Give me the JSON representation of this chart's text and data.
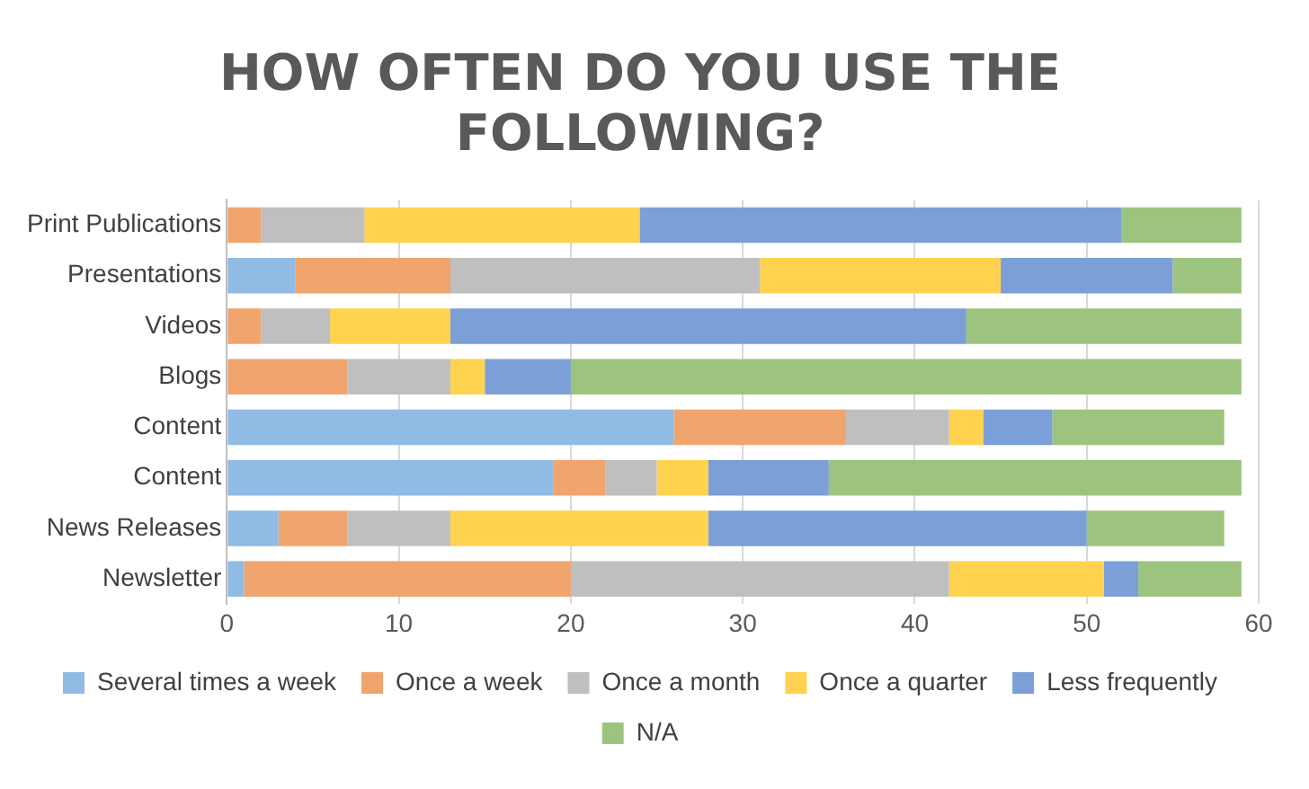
{
  "chart_data": {
    "type": "bar",
    "title": "HOW OFTEN DO YOU USE THE FOLLOWING?",
    "orientation": "horizontal",
    "stacked": true,
    "categories": [
      "Print Publications",
      "Presentations",
      "Videos",
      "Blogs",
      "Content",
      "Content",
      "News Releases",
      "Newsletter"
    ],
    "series": [
      {
        "name": "Several times a week",
        "color": "#8fbbe4",
        "values": [
          0,
          4,
          0,
          0,
          26,
          19,
          3,
          1
        ]
      },
      {
        "name": "Once a week",
        "color": "#f0a46e",
        "values": [
          2,
          9,
          2,
          7,
          10,
          3,
          4,
          19
        ]
      },
      {
        "name": "Once a month",
        "color": "#bfbfbf",
        "values": [
          6,
          18,
          4,
          6,
          6,
          3,
          6,
          22
        ]
      },
      {
        "name": "Once a quarter",
        "color": "#ffd24f",
        "values": [
          16,
          14,
          7,
          2,
          2,
          3,
          15,
          9
        ]
      },
      {
        "name": "Less frequently",
        "color": "#7b9fd6",
        "values": [
          28,
          10,
          30,
          5,
          4,
          7,
          22,
          2
        ]
      },
      {
        "name": "N/A",
        "color": "#9cc47e",
        "values": [
          7,
          4,
          16,
          39,
          10,
          24,
          8,
          6
        ]
      }
    ],
    "xlim": [
      0,
      60
    ],
    "xticks": [
      0,
      10,
      20,
      30,
      40,
      50,
      60
    ],
    "grid": "x",
    "legend": "bottom"
  }
}
